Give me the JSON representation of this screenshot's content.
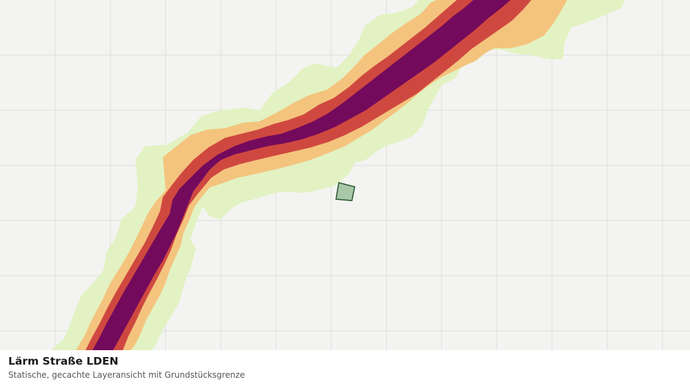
{
  "caption": {
    "title": "Lärm Straße LDEN",
    "subtitle": "Statische, gecachte Layeransicht mit Grundstücksgrenze"
  },
  "map": {
    "background_color": "#f3f4f1",
    "grid_color": "#dcdedb",
    "noise_band_colors": {
      "outer": "#e2f2c3",
      "light": "#f4c47e",
      "medium": "#cf4840",
      "inner": "#730a5c"
    },
    "parcel": {
      "fill": "#a9c8a8",
      "stroke": "#2b5a34"
    }
  }
}
